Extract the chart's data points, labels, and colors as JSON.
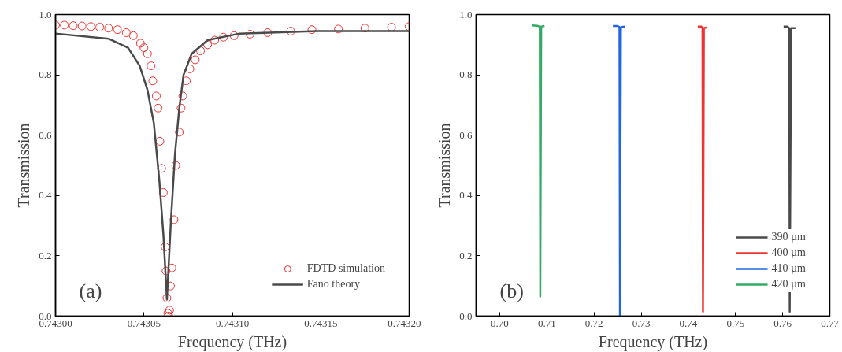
{
  "chart_data": [
    {
      "type": "scatter",
      "xlabel": "Frequency (THz)",
      "ylabel": "Transmission",
      "annotations": [
        "(a)"
      ],
      "legend": "bottom right",
      "grid": false,
      "xlim": [
        0.743,
        0.7432
      ],
      "ylim": [
        0,
        1
      ],
      "xticks": [
        {
          "value": 0.743,
          "label": "0.74300"
        },
        {
          "value": 0.74305,
          "label": "0.74305"
        },
        {
          "value": 0.7431,
          "label": "0.74310"
        },
        {
          "value": 0.74315,
          "label": "0.74315"
        },
        {
          "value": 0.7432,
          "label": "0.74320"
        }
      ],
      "yticks": [
        {
          "value": 0,
          "label": "0.0"
        },
        {
          "value": 0.2,
          "label": "0.2"
        },
        {
          "value": 0.4,
          "label": "0.4"
        },
        {
          "value": 0.6,
          "label": "0.6"
        },
        {
          "value": 0.8,
          "label": "0.8"
        },
        {
          "value": 1,
          "label": "1.0"
        }
      ],
      "series": [
        {
          "name": "FDTD simulation",
          "type": "scatter",
          "marker": "circle",
          "color": "#ee3333",
          "x": [
            0.743,
            0.743005,
            0.74301,
            0.743015,
            0.74302,
            0.743025,
            0.74303,
            0.743035,
            0.74304,
            0.743044,
            0.743048,
            0.74305,
            0.743052,
            0.743054,
            0.743055,
            0.743057,
            0.743058,
            0.743059,
            0.74306,
            0.743061,
            0.743062,
            0.7430625,
            0.743063,
            0.7430635,
            0.743064,
            0.7430645,
            0.743065,
            0.7430658,
            0.743067,
            0.743068,
            0.74307,
            0.743071,
            0.743072,
            0.743074,
            0.743076,
            0.743079,
            0.743082,
            0.743086,
            0.74309,
            0.743095,
            0.743101,
            0.74311,
            0.74312,
            0.743133,
            0.743145,
            0.74316,
            0.743175,
            0.74319,
            0.7432
          ],
          "values": [
            0.965,
            0.965,
            0.963,
            0.962,
            0.96,
            0.958,
            0.955,
            0.95,
            0.94,
            0.93,
            0.905,
            0.89,
            0.87,
            0.83,
            0.78,
            0.73,
            0.69,
            0.58,
            0.49,
            0.41,
            0.23,
            0.15,
            0.06,
            0.01,
            0.0,
            0.02,
            0.1,
            0.16,
            0.32,
            0.5,
            0.61,
            0.69,
            0.73,
            0.78,
            0.82,
            0.85,
            0.88,
            0.9,
            0.915,
            0.925,
            0.93,
            0.935,
            0.94,
            0.945,
            0.95,
            0.952,
            0.955,
            0.958,
            0.96
          ]
        },
        {
          "name": "Fano theory",
          "type": "line",
          "color": "#4a4a4a",
          "x": [
            0.743,
            0.74303,
            0.743041,
            0.7430476,
            0.743052,
            0.7430556,
            0.7430587,
            0.743061,
            0.743063,
            0.7430653,
            0.7430676,
            0.74307,
            0.7430724,
            0.743077,
            0.743086,
            0.743104,
            0.743148,
            0.7432
          ],
          "values": [
            0.937,
            0.92,
            0.89,
            0.83,
            0.75,
            0.64,
            0.45,
            0.27,
            0.055,
            0.32,
            0.54,
            0.69,
            0.8,
            0.87,
            0.915,
            0.937,
            0.945,
            0.945
          ]
        }
      ]
    },
    {
      "type": "line",
      "xlabel": "Frequency (THz)",
      "ylabel": "Transmission",
      "annotations": [
        "(b)"
      ],
      "legend": "bottom right",
      "grid": false,
      "xlim": [
        0.695,
        0.77
      ],
      "ylim": [
        0,
        1
      ],
      "xticks": [
        {
          "value": 0.7,
          "label": "0.70"
        },
        {
          "value": 0.71,
          "label": "0.71"
        },
        {
          "value": 0.72,
          "label": "0.72"
        },
        {
          "value": 0.73,
          "label": "0.73"
        },
        {
          "value": 0.74,
          "label": "0.74"
        },
        {
          "value": 0.75,
          "label": "0.75"
        },
        {
          "value": 0.76,
          "label": "0.76"
        },
        {
          "value": 0.77,
          "label": "0.77"
        }
      ],
      "yticks": [
        {
          "value": 0,
          "label": "0.0"
        },
        {
          "value": 0.2,
          "label": "0.2"
        },
        {
          "value": 0.4,
          "label": "0.4"
        },
        {
          "value": 0.6,
          "label": "0.6"
        },
        {
          "value": 0.8,
          "label": "0.8"
        },
        {
          "value": 1,
          "label": "1.0"
        }
      ],
      "series": [
        {
          "name": "390 µm",
          "color": "#4a4a4a",
          "x": [
            0.7602,
            0.761,
            0.7614,
            0.7615,
            0.7618,
            0.7627
          ],
          "values": [
            0.96,
            0.96,
            0.955,
            0.015,
            0.955,
            0.955
          ]
        },
        {
          "name": "400 µm",
          "color": "#ee3333",
          "x": [
            0.742,
            0.7428,
            0.743,
            0.7431,
            0.7433,
            0.744
          ],
          "values": [
            0.96,
            0.96,
            0.955,
            0.015,
            0.955,
            0.958
          ]
        },
        {
          "name": "410 µm",
          "color": "#2266dd",
          "x": [
            0.724,
            0.725,
            0.7254,
            0.7255,
            0.7257,
            0.7265
          ],
          "values": [
            0.962,
            0.962,
            0.958,
            0.0,
            0.958,
            0.96
          ]
        },
        {
          "name": "420 µm",
          "color": "#33aa66",
          "x": [
            0.7068,
            0.708,
            0.7085,
            0.7086,
            0.7088,
            0.7095
          ],
          "values": [
            0.964,
            0.963,
            0.96,
            0.065,
            0.96,
            0.962
          ]
        }
      ]
    }
  ]
}
